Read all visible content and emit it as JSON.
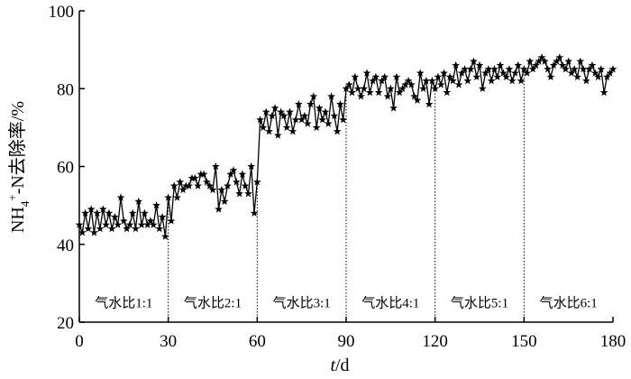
{
  "chart_data": {
    "type": "line",
    "title": "",
    "xlabel": {
      "italic": "t",
      "rest": "/d"
    },
    "ylabel": {
      "base": "NH",
      "sub": "4",
      "sup": "+",
      "rest": "-N去除率/%"
    },
    "xlim": [
      0,
      180
    ],
    "ylim": [
      20,
      100
    ],
    "xticks": [
      0,
      30,
      60,
      90,
      120,
      150,
      180
    ],
    "yticks": [
      20,
      40,
      60,
      80,
      100
    ],
    "grid": false,
    "legend": "none",
    "marker": "star",
    "line_color": "#000000",
    "dividers": [
      30,
      60,
      90,
      120,
      150
    ],
    "phases": [
      {
        "label": "气水比1:1",
        "x": 15
      },
      {
        "label": "气水比2:1",
        "x": 45
      },
      {
        "label": "气水比3:1",
        "x": 75
      },
      {
        "label": "气水比4:1",
        "x": 105
      },
      {
        "label": "气水比5:1",
        "x": 135
      },
      {
        "label": "气水比6:1",
        "x": 165
      }
    ],
    "phase_label_y": 25,
    "series": [
      {
        "x": [
          0,
          1,
          2,
          3,
          4,
          5,
          6,
          7,
          8,
          9,
          10,
          11,
          12,
          13,
          14,
          15,
          16,
          17,
          18,
          19,
          20,
          21,
          22,
          23,
          24,
          25,
          26,
          27,
          28,
          29,
          30,
          31,
          32,
          33,
          34,
          35,
          36,
          37,
          38,
          39,
          40,
          41,
          42,
          43,
          44,
          45,
          46,
          47,
          48,
          49,
          50,
          51,
          52,
          53,
          54,
          55,
          56,
          57,
          58,
          59,
          60,
          61,
          62,
          63,
          64,
          65,
          66,
          67,
          68,
          69,
          70,
          71,
          72,
          73,
          74,
          75,
          76,
          77,
          78,
          79,
          80,
          81,
          82,
          83,
          84,
          85,
          86,
          87,
          88,
          89,
          90,
          91,
          92,
          93,
          94,
          95,
          96,
          97,
          98,
          99,
          100,
          101,
          102,
          103,
          104,
          105,
          106,
          107,
          108,
          109,
          110,
          111,
          112,
          113,
          114,
          115,
          116,
          117,
          118,
          119,
          120,
          121,
          122,
          123,
          124,
          125,
          126,
          127,
          128,
          129,
          130,
          131,
          132,
          133,
          134,
          135,
          136,
          137,
          138,
          139,
          140,
          141,
          142,
          143,
          144,
          145,
          146,
          147,
          148,
          149,
          150,
          151,
          152,
          153,
          154,
          155,
          156,
          157,
          158,
          159,
          160,
          161,
          162,
          163,
          164,
          165,
          166,
          167,
          168,
          169,
          170,
          171,
          172,
          173,
          174,
          175,
          176,
          177,
          178,
          179,
          180
        ],
        "y": [
          45,
          43,
          48,
          44,
          49,
          43,
          48,
          44,
          49,
          45,
          48,
          44,
          47,
          45,
          52,
          46,
          44,
          45,
          48,
          44,
          51,
          45,
          48,
          45,
          46,
          45,
          50,
          44,
          47,
          42,
          52,
          46,
          55,
          52,
          56,
          54,
          55,
          55,
          57,
          57,
          55,
          58,
          58,
          56,
          55,
          54,
          60,
          49,
          54,
          51,
          55,
          58,
          59,
          56,
          53,
          58,
          55,
          53,
          60,
          48,
          56,
          72,
          70,
          74,
          69,
          73,
          75,
          68,
          74,
          73,
          70,
          74,
          69,
          72,
          76,
          72,
          73,
          71,
          76,
          78,
          70,
          75,
          72,
          74,
          71,
          78,
          73,
          69,
          76,
          72,
          80,
          81,
          79,
          83,
          80,
          78,
          80,
          84,
          79,
          82,
          83,
          79,
          82,
          83,
          78,
          80,
          75,
          83,
          79,
          80,
          81,
          82,
          81,
          78,
          77,
          84,
          80,
          82,
          76,
          82,
          80,
          83,
          81,
          84,
          79,
          83,
          82,
          86,
          81,
          84,
          85,
          82,
          85,
          87,
          83,
          86,
          80,
          84,
          85,
          82,
          85,
          83,
          86,
          84,
          83,
          85,
          82,
          84,
          86,
          82,
          85,
          84,
          87,
          85,
          86,
          87,
          88,
          87,
          85,
          83,
          86,
          87,
          88,
          86,
          85,
          87,
          84,
          85,
          83,
          87,
          85,
          82,
          85,
          86,
          84,
          83,
          85,
          79,
          83,
          84,
          85
        ]
      }
    ]
  }
}
